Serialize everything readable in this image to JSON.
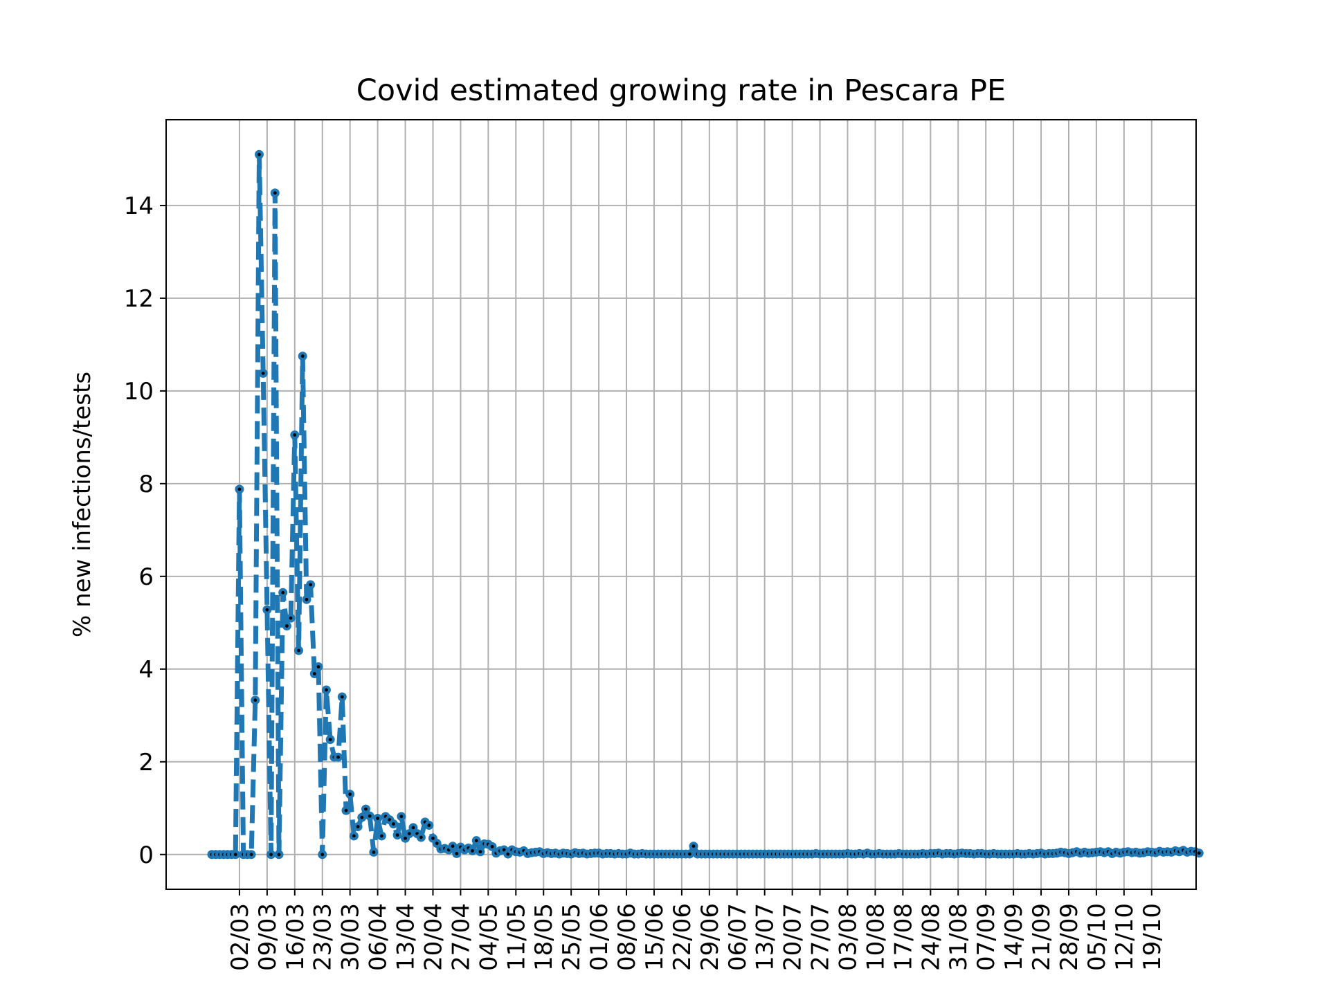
{
  "chart_data": {
    "type": "line",
    "title": "Covid estimated growing rate in Pescara PE",
    "xlabel": "",
    "ylabel": "% new infections/tests",
    "ylim": [
      -0.75,
      15.85
    ],
    "yticks": [
      0,
      2,
      4,
      6,
      8,
      10,
      12,
      14
    ],
    "grid": true,
    "legend": "none",
    "colors": {
      "line": "#1f77b4",
      "marker_center": "#000000",
      "grid": "#b0b0b0"
    },
    "line_style": "dashed",
    "x_start_date": "2020-02-24",
    "x_ticks": [
      "02/03",
      "09/03",
      "16/03",
      "23/03",
      "30/03",
      "06/04",
      "13/04",
      "20/04",
      "27/04",
      "04/05",
      "11/05",
      "18/05",
      "25/05",
      "01/06",
      "08/06",
      "15/06",
      "22/06",
      "29/06",
      "06/07",
      "13/07",
      "20/07",
      "27/07",
      "03/08",
      "10/08",
      "17/08",
      "24/08",
      "31/08",
      "07/09",
      "14/09",
      "21/09",
      "28/09",
      "05/10",
      "12/10",
      "19/10"
    ],
    "x_tick_offsets": [
      7,
      14,
      21,
      28,
      35,
      42,
      49,
      56,
      63,
      70,
      77,
      84,
      91,
      98,
      105,
      112,
      119,
      126,
      133,
      140,
      147,
      154,
      161,
      168,
      175,
      182,
      189,
      196,
      203,
      210,
      217,
      224,
      231,
      238
    ],
    "series": [
      {
        "name": "",
        "values": [
          0,
          0,
          0,
          0,
          0,
          0,
          0,
          7.88,
          0,
          0,
          0,
          3.33,
          15.1,
          10.38,
          5.28,
          0,
          14.27,
          0,
          5.65,
          4.93,
          5.1,
          9.05,
          4.4,
          10.75,
          5.5,
          5.82,
          3.9,
          4.05,
          0,
          3.55,
          2.48,
          2.1,
          2.1,
          3.4,
          0.95,
          1.3,
          0.4,
          0.6,
          0.8,
          0.98,
          0.83,
          0.05,
          0.78,
          0.4,
          0.82,
          0.75,
          0.66,
          0.42,
          0.82,
          0.35,
          0.45,
          0.58,
          0.45,
          0.37,
          0.7,
          0.63,
          0.35,
          0.24,
          0.12,
          0.13,
          0.1,
          0.18,
          0.02,
          0.16,
          0.1,
          0.14,
          0.08,
          0.3,
          0.06,
          0.23,
          0.22,
          0.17,
          0.03,
          0.08,
          0.1,
          0.01,
          0.1,
          0.06,
          0.05,
          0.08,
          0.02,
          0.04,
          0.05,
          0.06,
          0.02,
          0.04,
          0.02,
          0.03,
          0.01,
          0.03,
          0.02,
          0.01,
          0.04,
          0.02,
          0.03,
          0.01,
          0.02,
          0.03,
          0.03,
          0.01,
          0.02,
          0.02,
          0.01,
          0.02,
          0.01,
          0.01,
          0.03,
          0.01,
          0.01,
          0.02,
          0.01,
          0.01,
          0.01,
          0.01,
          0.01,
          0.01,
          0.01,
          0.01,
          0.01,
          0.01,
          0.01,
          0.01,
          0.18,
          0.01,
          0.01,
          0.01,
          0.01,
          0.01,
          0.01,
          0.01,
          0.01,
          0.01,
          0.01,
          0.01,
          0.01,
          0.01,
          0.01,
          0.01,
          0.01,
          0.01,
          0.01,
          0.01,
          0.01,
          0.01,
          0.01,
          0.01,
          0.01,
          0.01,
          0.01,
          0.01,
          0.01,
          0.01,
          0.01,
          0.02,
          0.01,
          0.01,
          0.01,
          0.01,
          0.01,
          0.01,
          0.01,
          0.02,
          0.01,
          0.01,
          0.02,
          0.01,
          0.03,
          0.01,
          0.01,
          0.02,
          0.01,
          0.01,
          0.01,
          0.01,
          0.02,
          0.01,
          0.01,
          0.01,
          0.01,
          0.01,
          0.02,
          0.01,
          0.02,
          0.02,
          0.03,
          0.01,
          0.02,
          0.02,
          0.01,
          0.02,
          0.03,
          0.02,
          0.02,
          0.01,
          0.02,
          0.02,
          0.01,
          0.01,
          0.02,
          0.01,
          0.01,
          0.01,
          0.01,
          0.01,
          0.02,
          0.01,
          0.01,
          0.02,
          0.01,
          0.02,
          0.03,
          0.01,
          0.02,
          0.02,
          0.03,
          0.05,
          0.04,
          0.02,
          0.04,
          0.06,
          0.03,
          0.05,
          0.03,
          0.04,
          0.05,
          0.06,
          0.04,
          0.06,
          0.02,
          0.05,
          0.03,
          0.05,
          0.06,
          0.04,
          0.05,
          0.03,
          0.04,
          0.06,
          0.05,
          0.04,
          0.07,
          0.05,
          0.06,
          0.05,
          0.08,
          0.06,
          0.09,
          0.05,
          0.07,
          0.06,
          0.03
        ]
      }
    ]
  }
}
